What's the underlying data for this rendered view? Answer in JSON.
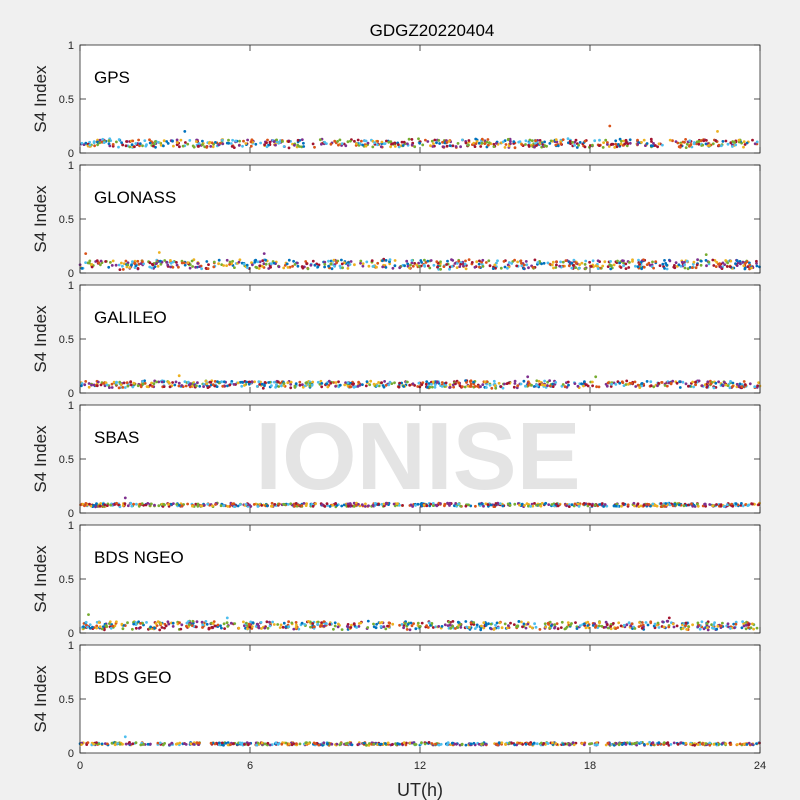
{
  "figure": {
    "title": "GDGZ20220404",
    "xlabel": "UT(h)",
    "watermark": "IONISE"
  },
  "colors": [
    "#0072BD",
    "#D95319",
    "#EDB120",
    "#7E2F8E",
    "#77AC30",
    "#4DBEEE",
    "#A2142F"
  ],
  "chart_data": [
    {
      "type": "scatter",
      "panel": "GPS",
      "ylabel": "S4 Index",
      "xlim": [
        0,
        24
      ],
      "ylim": [
        0,
        1
      ],
      "xticks": [
        0,
        6,
        12,
        18,
        24
      ],
      "yticks": [
        0,
        0.5,
        1
      ],
      "grid": false,
      "series_count": 7,
      "typical_s4": 0.09,
      "spread": 0.035,
      "outliers": [
        {
          "x": 3.7,
          "y": 0.2
        },
        {
          "x": 18.7,
          "y": 0.25
        },
        {
          "x": 22.5,
          "y": 0.2
        }
      ]
    },
    {
      "type": "scatter",
      "panel": "GLONASS",
      "ylabel": "S4 Index",
      "xlim": [
        0,
        24
      ],
      "ylim": [
        0,
        1
      ],
      "xticks": [
        0,
        6,
        12,
        18,
        24
      ],
      "yticks": [
        0,
        0.5,
        1
      ],
      "grid": false,
      "series_count": 7,
      "typical_s4": 0.08,
      "spread": 0.04,
      "outliers": [
        {
          "x": 0.2,
          "y": 0.18
        },
        {
          "x": 2.8,
          "y": 0.19
        },
        {
          "x": 6.5,
          "y": 0.18
        },
        {
          "x": 22.1,
          "y": 0.17
        }
      ]
    },
    {
      "type": "scatter",
      "panel": "GALILEO",
      "ylabel": "S4 Index",
      "xlim": [
        0,
        24
      ],
      "ylim": [
        0,
        1
      ],
      "xticks": [
        0,
        6,
        12,
        18,
        24
      ],
      "yticks": [
        0,
        0.5,
        1
      ],
      "grid": false,
      "series_count": 7,
      "typical_s4": 0.08,
      "spread": 0.03,
      "outliers": [
        {
          "x": 3.5,
          "y": 0.16
        },
        {
          "x": 15.8,
          "y": 0.15
        },
        {
          "x": 18.2,
          "y": 0.15
        }
      ]
    },
    {
      "type": "scatter",
      "panel": "SBAS",
      "ylabel": "S4 Index",
      "xlim": [
        0,
        24
      ],
      "ylim": [
        0,
        1
      ],
      "xticks": [
        0,
        6,
        12,
        18,
        24
      ],
      "yticks": [
        0,
        0.5,
        1
      ],
      "grid": false,
      "series_count": 7,
      "typical_s4": 0.075,
      "spread": 0.015,
      "outliers": [
        {
          "x": 1.6,
          "y": 0.14
        }
      ]
    },
    {
      "type": "scatter",
      "panel": "BDS NGEO",
      "ylabel": "S4 Index",
      "xlim": [
        0,
        24
      ],
      "ylim": [
        0,
        1
      ],
      "xticks": [
        0,
        6,
        12,
        18,
        24
      ],
      "yticks": [
        0,
        0.5,
        1
      ],
      "grid": false,
      "series_count": 7,
      "typical_s4": 0.07,
      "spread": 0.035,
      "outliers": [
        {
          "x": 0.3,
          "y": 0.17
        },
        {
          "x": 5.2,
          "y": 0.14
        },
        {
          "x": 20.8,
          "y": 0.14
        }
      ]
    },
    {
      "type": "scatter",
      "panel": "BDS GEO",
      "ylabel": "S4 Index",
      "xlim": [
        0,
        24
      ],
      "ylim": [
        0,
        1
      ],
      "xticks": [
        0,
        6,
        12,
        18,
        24
      ],
      "yticks": [
        0,
        0.5,
        1
      ],
      "grid": false,
      "series_count": 7,
      "typical_s4": 0.085,
      "spread": 0.012,
      "outliers": [
        {
          "x": 1.6,
          "y": 0.15
        }
      ]
    }
  ]
}
